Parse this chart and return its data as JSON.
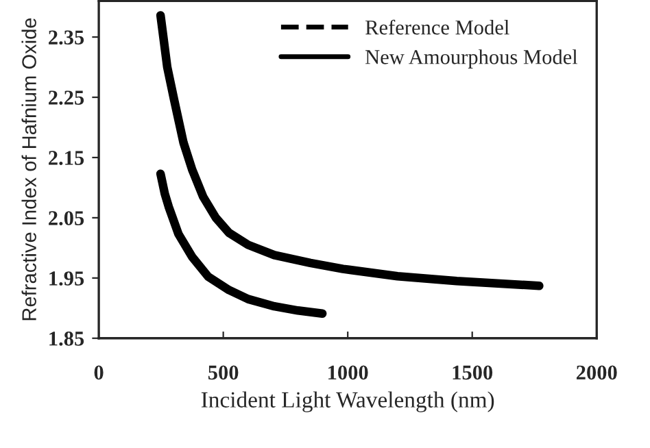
{
  "chart_data": {
    "type": "line",
    "xlabel": "Incident Light Wavelength (nm)",
    "ylabel": "Refractive Index of Hafnium Oxide",
    "xlim": [
      0,
      2000
    ],
    "xticks": [
      0,
      500,
      1000,
      1500,
      2000
    ],
    "ylim": [
      1.85,
      2.41
    ],
    "yticks": [
      1.85,
      1.95,
      2.05,
      2.15,
      2.25,
      2.35
    ],
    "grid": false,
    "legend": "top right",
    "marker": "none",
    "series": [
      {
        "name": "Reference Model",
        "color": "#000000",
        "line_style": "dashed"
      },
      {
        "name": "New Amourphous Model",
        "color": "#000000",
        "line_style": "solid",
        "x": [
          248,
          275,
          303,
          340,
          375,
          419,
          470,
          523,
          600,
          705,
          850,
          981,
          1200,
          1438,
          1769
        ],
        "values": [
          2.386,
          2.3,
          2.245,
          2.175,
          2.13,
          2.085,
          2.05,
          2.025,
          2.005,
          1.988,
          1.975,
          1.965,
          1.953,
          1.945,
          1.937
        ]
      },
      {
        "color": "#000000",
        "line_style": "solid",
        "x": [
          248,
          265,
          281,
          320,
          375,
          440,
          523,
          600,
          705,
          800,
          898
        ],
        "values": [
          2.123,
          2.09,
          2.068,
          2.023,
          1.985,
          1.952,
          1.93,
          1.915,
          1.903,
          1.896,
          1.891
        ]
      }
    ]
  }
}
